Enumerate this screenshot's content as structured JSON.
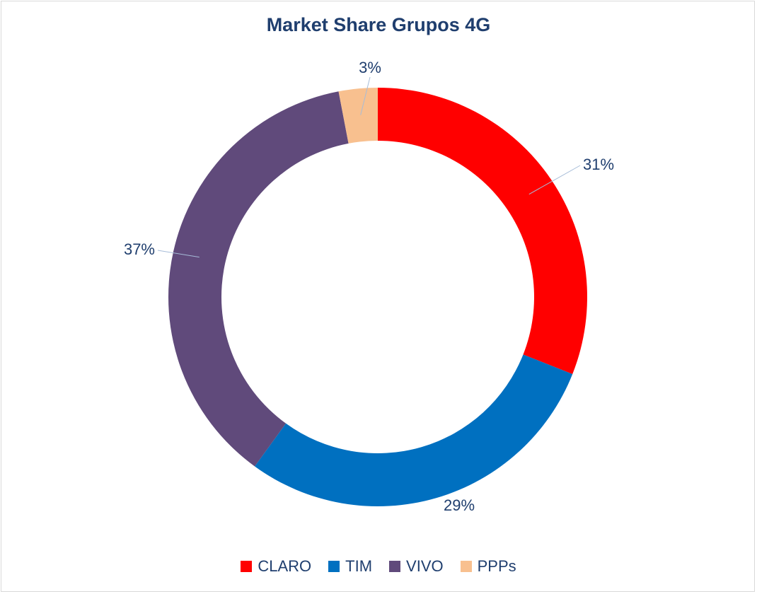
{
  "chart_data": {
    "type": "pie",
    "title": "Market Share Grupos 4G",
    "donut": true,
    "legend_position": "bottom",
    "slices": [
      {
        "name": "CLARO",
        "value": 31,
        "label": "31%",
        "color": "#ff0000"
      },
      {
        "name": "TIM",
        "value": 29,
        "label": "29%",
        "color": "#0070c0"
      },
      {
        "name": "VIVO",
        "value": 37,
        "label": "37%",
        "color": "#604a7b"
      },
      {
        "name": "PPPs",
        "value": 3,
        "label": "3%",
        "color": "#f8c08f"
      }
    ]
  }
}
